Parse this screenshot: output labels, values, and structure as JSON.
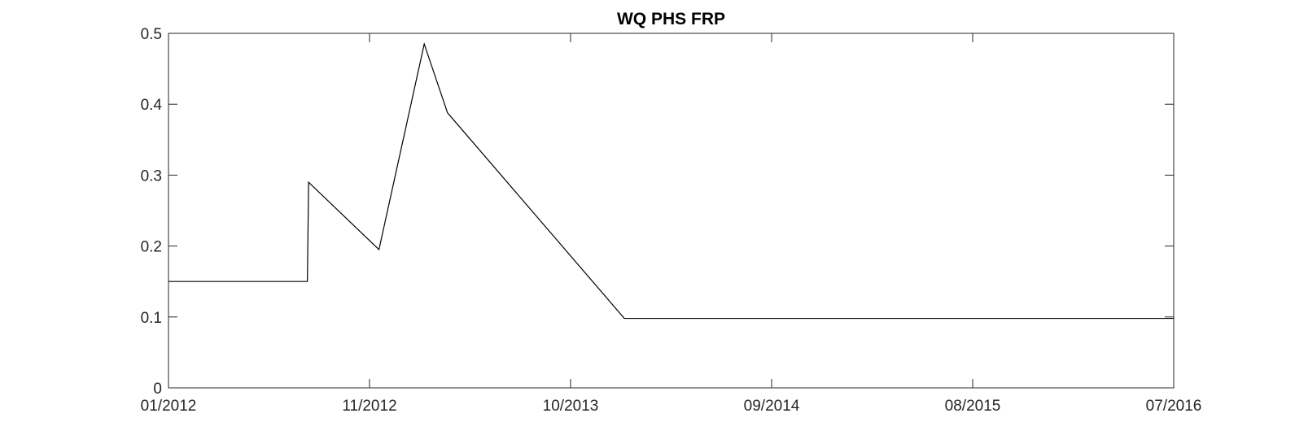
{
  "chart_data": {
    "type": "line",
    "title": "WQ PHS FRP",
    "xlabel": "",
    "ylabel": "",
    "x_tick_labels": [
      "01/2012",
      "11/2012",
      "10/2013",
      "09/2014",
      "08/2015",
      "07/2016"
    ],
    "y_tick_labels": [
      "0",
      "0.1",
      "0.2",
      "0.3",
      "0.4",
      "0.5"
    ],
    "xlim": [
      "2012-01-01",
      "2016-07-01"
    ],
    "ylim": [
      0,
      0.5
    ],
    "grid": false,
    "series": [
      {
        "color": "#000000",
        "points": [
          {
            "x": "2012-01-01",
            "y": 0.15
          },
          {
            "x": "2012-08-15",
            "y": 0.15
          },
          {
            "x": "2012-08-17",
            "y": 0.29
          },
          {
            "x": "2012-12-10",
            "y": 0.195
          },
          {
            "x": "2013-02-22",
            "y": 0.485
          },
          {
            "x": "2013-04-01",
            "y": 0.388
          },
          {
            "x": "2014-01-15",
            "y": 0.098
          },
          {
            "x": "2016-07-01",
            "y": 0.098
          }
        ]
      }
    ]
  }
}
